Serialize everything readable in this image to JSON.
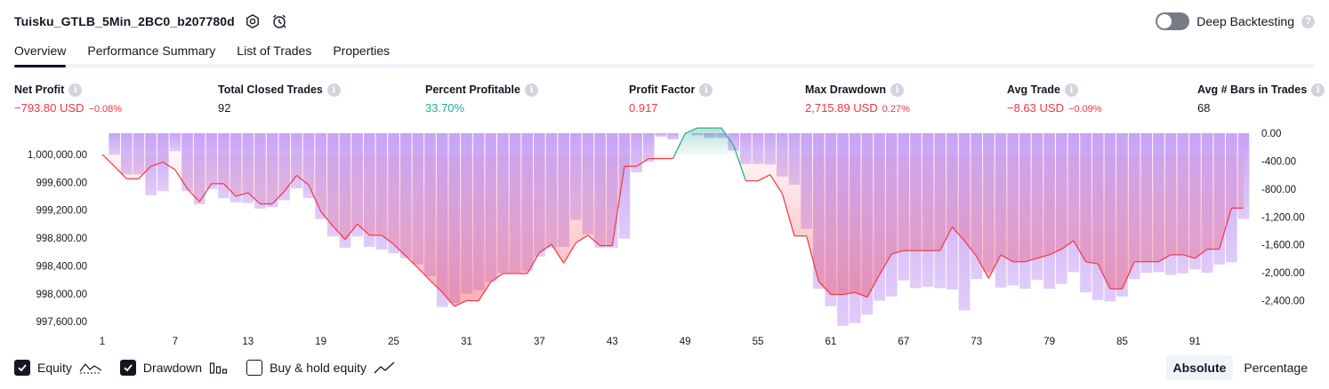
{
  "header": {
    "strategy_name": "Tuisku_GTLB_5Min_2BC0_b207780d",
    "deep_backtesting_label": "Deep Backtesting",
    "deep_backtesting_on": false
  },
  "tabs": [
    {
      "label": "Overview",
      "active": true
    },
    {
      "label": "Performance Summary",
      "active": false
    },
    {
      "label": "List of Trades",
      "active": false
    },
    {
      "label": "Properties",
      "active": false
    }
  ],
  "metrics": [
    {
      "label": "Net Profit",
      "value": "−793.80 USD",
      "sub": "−0.08%",
      "color": "red"
    },
    {
      "label": "Total Closed Trades",
      "value": "92",
      "sub": "",
      "color": "default"
    },
    {
      "label": "Percent Profitable",
      "value": "33.70%",
      "sub": "",
      "color": "green"
    },
    {
      "label": "Profit Factor",
      "value": "0.917",
      "sub": "",
      "color": "red"
    },
    {
      "label": "Max Drawdown",
      "value": "2,715.89 USD",
      "sub": "0.27%",
      "color": "red"
    },
    {
      "label": "Avg Trade",
      "value": "−8.63 USD",
      "sub": "−0.09%",
      "color": "red"
    },
    {
      "label": "Avg # Bars in Trades",
      "value": "68",
      "sub": "",
      "color": "default"
    }
  ],
  "legend": {
    "equity_label": "Equity",
    "drawdown_label": "Drawdown",
    "buyhold_label": "Buy & hold equity",
    "equity_checked": true,
    "drawdown_checked": true,
    "buyhold_checked": false
  },
  "mode": {
    "absolute_label": "Absolute",
    "percentage_label": "Percentage",
    "selected": "Absolute"
  },
  "colors": {
    "loss": "#f23645",
    "profit": "#22ab94",
    "drawdown_bar": "#d9b8fa",
    "equity_line": "#f23645"
  },
  "chart_data": {
    "type": "line",
    "series": [
      {
        "name": "Equity",
        "values": [
          1000000,
          999830,
          999650,
          999650,
          999830,
          999890,
          999780,
          999510,
          999320,
          999580,
          999580,
          999400,
          999450,
          999290,
          999290,
          999470,
          999700,
          999560,
          999180,
          998970,
          998780,
          999000,
          998840,
          998840,
          998710,
          998540,
          998370,
          998190,
          998020,
          997820,
          997900,
          997900,
          998170,
          998290,
          998290,
          998290,
          998590,
          998710,
          998440,
          998730,
          998840,
          998690,
          998690,
          999830,
          999830,
          999940,
          999940,
          999940,
          1000300,
          1000380,
          1000380,
          1000380,
          1000130,
          999620,
          999620,
          999710,
          999440,
          998830,
          998830,
          998180,
          997990,
          997990,
          998020,
          997950,
          998270,
          998570,
          998620,
          998620,
          998620,
          998620,
          998960,
          998760,
          998540,
          998220,
          998560,
          998460,
          998460,
          998510,
          998560,
          998640,
          998760,
          998460,
          998430,
          998070,
          998070,
          998460,
          998460,
          998460,
          998560,
          998560,
          998510,
          998640,
          998640,
          999230,
          999230
        ]
      },
      {
        "name": "Drawdown",
        "values": [
          0,
          -310,
          -590,
          -590,
          -890,
          -830,
          -260,
          -830,
          -1020,
          -800,
          -930,
          -990,
          -1000,
          -1080,
          -1060,
          -960,
          -790,
          -930,
          -1230,
          -1480,
          -1640,
          -1480,
          -1630,
          -1670,
          -1720,
          -1790,
          -1880,
          -2050,
          -2490,
          -2430,
          -2300,
          -2250,
          -2130,
          -2000,
          -2000,
          -1980,
          -1770,
          -1640,
          -1630,
          -1240,
          -1450,
          -1640,
          -1640,
          -1510,
          -560,
          -410,
          -50,
          -90,
          0,
          -30,
          -70,
          -70,
          -250,
          -440,
          -440,
          -450,
          -620,
          -740,
          -1370,
          -2230,
          -2480,
          -2760,
          -2720,
          -2600,
          -2400,
          -2340,
          -2110,
          -2220,
          -2200,
          -2220,
          -2240,
          -2540,
          -2090,
          -1990,
          -2210,
          -2180,
          -2230,
          -2100,
          -2230,
          -2160,
          -1990,
          -2280,
          -2390,
          -2410,
          -2340,
          -2090,
          -2000,
          -1990,
          -2030,
          -2010,
          -1950,
          -2000,
          -1880,
          -1850,
          -1230
        ]
      }
    ],
    "x_ticks": [
      1,
      7,
      13,
      19,
      25,
      31,
      37,
      43,
      49,
      55,
      61,
      67,
      73,
      79,
      85,
      91
    ],
    "y_left_ticks": [
      "1,000,000.00",
      "999,600.00",
      "999,200.00",
      "998,800.00",
      "998,400.00",
      "998,000.00",
      "997,600.00"
    ],
    "y_left_values": [
      1000000,
      999600,
      999200,
      998800,
      998400,
      998000,
      997600
    ],
    "y_left_range": [
      997500,
      1000330
    ],
    "y_right_ticks": [
      "0.00",
      "-400.00",
      "-800.00",
      "-1,200.00",
      "-1,600.00",
      "-2,000.00",
      "-2,400.00"
    ],
    "y_right_values": [
      0,
      -400,
      -800,
      -1200,
      -1600,
      -2000,
      -2400
    ],
    "y_right_range": [
      -2800,
      0
    ],
    "initial_capital": 1000000,
    "grid": false
  }
}
